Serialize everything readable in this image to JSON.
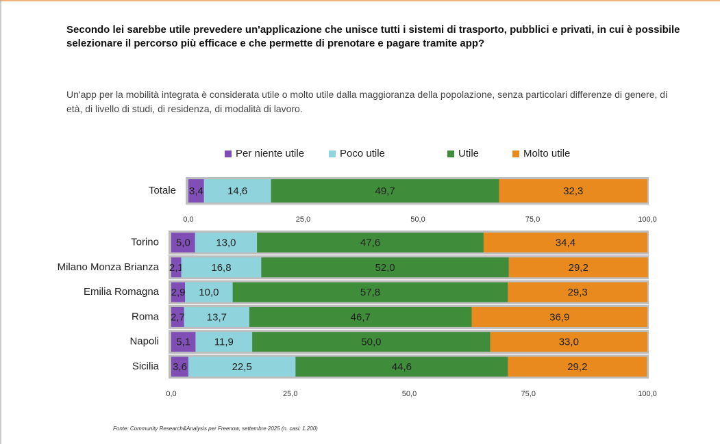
{
  "header": {
    "title": "Secondo lei sarebbe utile prevedere un'applicazione che unisce tutti i sistemi di trasporto, pubblici e privati, in cui è possibile selezionare il percorso più efficace e che permette di prenotare e pagare tramite app?",
    "subtitle": "Un'app per la mobilità integrata è considerata utile o molto utile dalla maggioranza della popolazione, senza particolari differenze di genere, di età, di livello di studi, di residenza, di modalità di lavoro."
  },
  "chart_data": [
    {
      "type": "stacked-bar",
      "orientation": "horizontal",
      "legend": "top",
      "categories": [
        "Totale"
      ],
      "series": [
        {
          "name": "Per niente utile",
          "color": "#7f4fb5",
          "values": [
            3.4
          ],
          "value_labels": [
            "3,4"
          ]
        },
        {
          "name": "Poco utile",
          "color": "#8fd3dc",
          "values": [
            14.6
          ],
          "value_labels": [
            "14,6"
          ]
        },
        {
          "name": "Utile",
          "color": "#3f8c3a",
          "values": [
            49.7
          ],
          "value_labels": [
            "49,7"
          ]
        },
        {
          "name": "Molto utile",
          "color": "#e98a1e",
          "values": [
            32.3
          ],
          "value_labels": [
            "32,3"
          ]
        }
      ],
      "xlim": [
        0,
        100
      ],
      "xticks": [
        {
          "value": 0,
          "label": "0,0"
        },
        {
          "value": 25,
          "label": "25,0"
        },
        {
          "value": 50,
          "label": "50,0"
        },
        {
          "value": 75,
          "label": "75,0"
        },
        {
          "value": 100,
          "label": "100,0"
        }
      ]
    },
    {
      "type": "stacked-bar",
      "orientation": "horizontal",
      "categories": [
        "Torino",
        "Milano Monza Brianza",
        "Emilia Romagna",
        "Roma",
        "Napoli",
        "Sicilia"
      ],
      "series": [
        {
          "color": "#7f4fb5",
          "values": [
            5.0,
            2.1,
            2.9,
            2.7,
            5.1,
            3.6
          ],
          "value_labels": [
            "5,0",
            "2,1",
            "2,9",
            "2,7",
            "5,1",
            "3,6"
          ]
        },
        {
          "color": "#8fd3dc",
          "values": [
            13.0,
            16.8,
            10.0,
            13.7,
            11.9,
            22.5
          ],
          "value_labels": [
            "13,0",
            "16,8",
            "10,0",
            "13,7",
            "11,9",
            "22,5"
          ]
        },
        {
          "color": "#3f8c3a",
          "values": [
            47.6,
            52.0,
            57.8,
            46.7,
            50.0,
            44.6
          ],
          "value_labels": [
            "47,6",
            "52,0",
            "57,8",
            "46,7",
            "50,0",
            "44,6"
          ]
        },
        {
          "color": "#e98a1e",
          "values": [
            34.4,
            29.2,
            29.3,
            36.9,
            33.0,
            29.2
          ],
          "value_labels": [
            "34,4",
            "29,2",
            "29,3",
            "36,9",
            "33,0",
            "29,2"
          ]
        }
      ],
      "xlim": [
        0,
        100
      ],
      "xticks": [
        {
          "value": 0,
          "label": "0,0"
        },
        {
          "value": 25,
          "label": "25,0"
        },
        {
          "value": 50,
          "label": "50,0"
        },
        {
          "value": 75,
          "label": "75,0"
        },
        {
          "value": 100,
          "label": "100,0"
        }
      ]
    }
  ],
  "source": "Fonte: Community Research&Analysis per Freenow, settembre 2025 (n. casi: 1.200)"
}
